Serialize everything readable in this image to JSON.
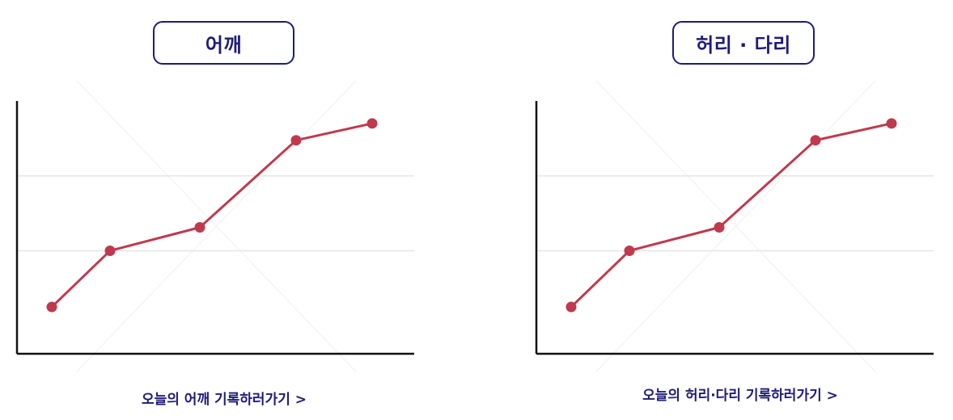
{
  "colors": {
    "accent_navy": "#1e1b7a",
    "line_red": "#c0394d",
    "axis_black": "#111111",
    "grid_gray": "#e6e6e6"
  },
  "panels": [
    {
      "title": "어깨",
      "link_text": "오늘의 어깨 기록하러가기 >",
      "chart_data": {
        "type": "line",
        "x": [
          1,
          2,
          3,
          4,
          5
        ],
        "series": [
          {
            "values": [
              1.0,
              4.0,
              5.25,
              9.9,
              10.8
            ]
          }
        ],
        "ylim": [
          -1.5,
          12
        ],
        "grid": true,
        "gridlines_y": [
          4.0,
          8.0
        ],
        "title": "",
        "xlabel": "",
        "ylabel": ""
      }
    },
    {
      "title": "허리 · 다리",
      "link_text": "오늘의 허리·다리 기록하러가기 >",
      "chart_data": {
        "type": "line",
        "x": [
          1,
          2,
          3,
          4,
          5
        ],
        "series": [
          {
            "values": [
              1.0,
              4.0,
              5.25,
              9.9,
              10.8
            ]
          }
        ],
        "ylim": [
          -1.5,
          12
        ],
        "grid": true,
        "gridlines_y": [
          4.0,
          8.0
        ],
        "title": "",
        "xlabel": "",
        "ylabel": ""
      }
    }
  ]
}
